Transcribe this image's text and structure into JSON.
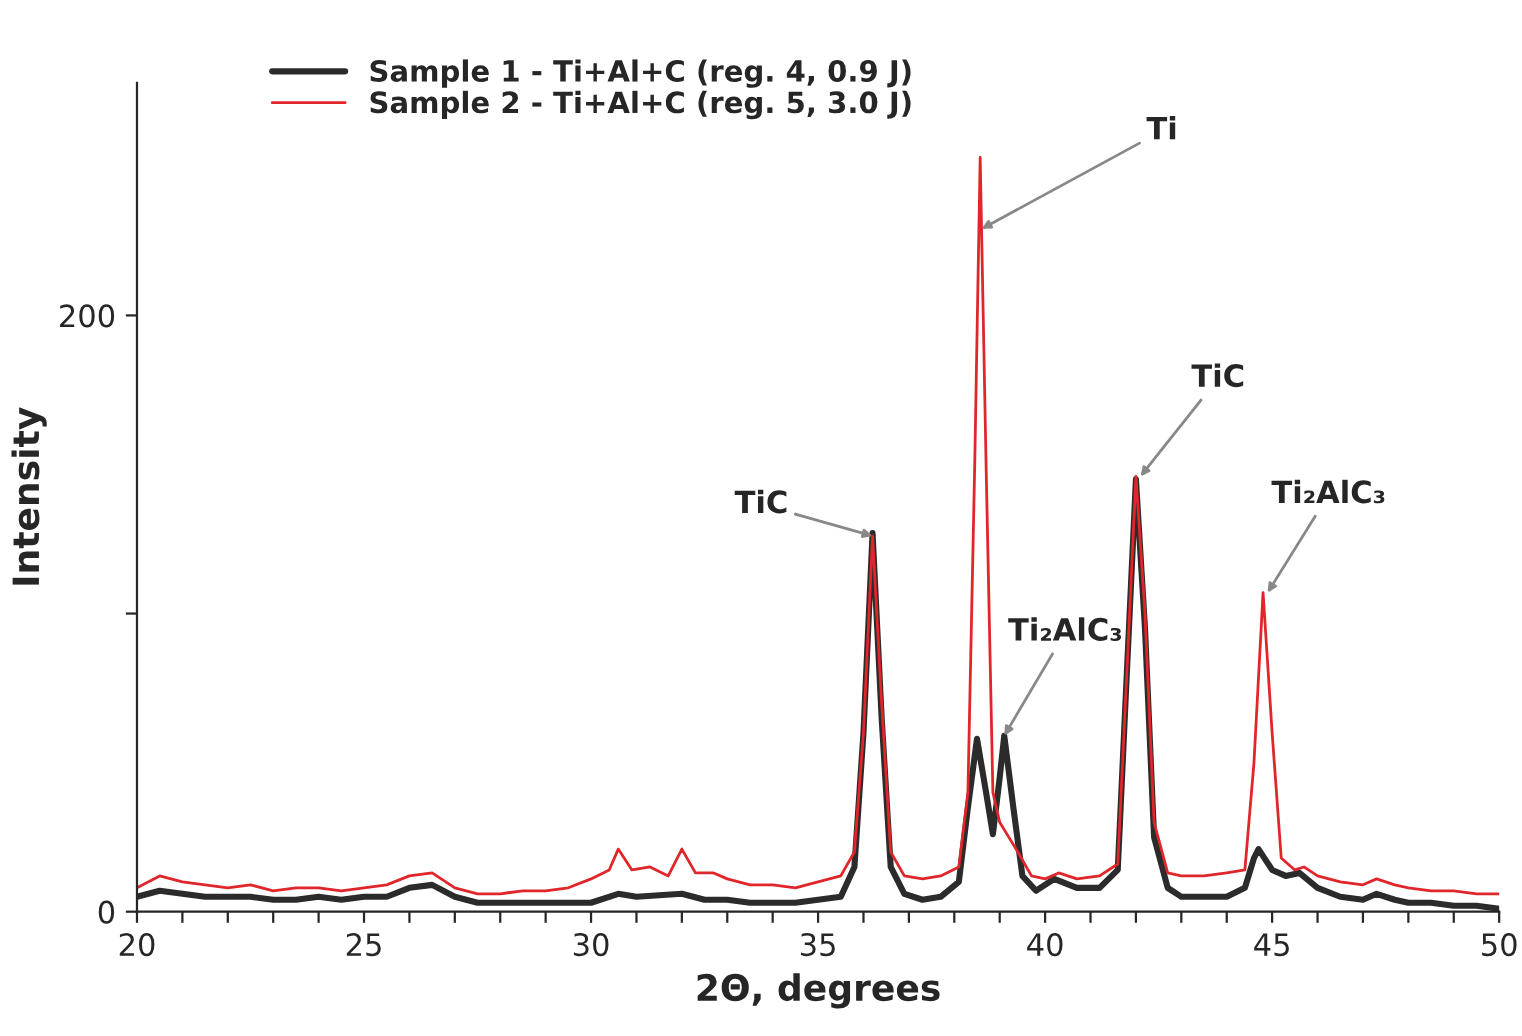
{
  "chart_data": {
    "type": "line",
    "xlabel": "2Θ, degrees",
    "ylabel": "Intensity",
    "xlim": [
      20,
      50
    ],
    "ylim": [
      0,
      278
    ],
    "xticks": [
      20,
      {
        "value": 21,
        "label": null
      },
      {
        "value": 22,
        "label": null
      },
      {
        "value": 23,
        "label": null
      },
      {
        "value": 24,
        "label": null
      },
      25,
      {
        "value": 26,
        "label": null
      },
      {
        "value": 27,
        "label": null
      },
      {
        "value": 28,
        "label": null
      },
      {
        "value": 29,
        "label": null
      },
      30,
      {
        "value": 31,
        "label": null
      },
      {
        "value": 32,
        "label": null
      },
      {
        "value": 33,
        "label": null
      },
      {
        "value": 34,
        "label": null
      },
      35,
      {
        "value": 36,
        "label": null
      },
      {
        "value": 37,
        "label": null
      },
      {
        "value": 38,
        "label": null
      },
      {
        "value": 39,
        "label": null
      },
      40,
      {
        "value": 41,
        "label": null
      },
      {
        "value": 42,
        "label": null
      },
      {
        "value": 43,
        "label": null
      },
      {
        "value": 44,
        "label": null
      },
      45,
      {
        "value": 46,
        "label": null
      },
      {
        "value": 47,
        "label": null
      },
      {
        "value": 48,
        "label": null
      },
      {
        "value": 49,
        "label": null
      },
      50
    ],
    "yticks": [
      0,
      {
        "value": 100,
        "label": null
      },
      200
    ],
    "grid": false,
    "legend": "top left",
    "marker": "none",
    "line_style": "solid",
    "series": [
      {
        "name": "Sample 1 - Ti+Al+C (reg. 4, 0.9 J)",
        "color": "#2b2b2b",
        "x": [
          20,
          20.5,
          21,
          21.5,
          22,
          22.5,
          23,
          23.5,
          24,
          24.5,
          25,
          25.5,
          26,
          26.5,
          27,
          27.5,
          28,
          28.5,
          29,
          29.5,
          30,
          30.6,
          31,
          32,
          32.5,
          33,
          33.5,
          34,
          34.5,
          35,
          35.5,
          35.8,
          36.0,
          36.2,
          36.4,
          36.6,
          36.9,
          37.3,
          37.7,
          38.1,
          38.3,
          38.5,
          38.7,
          38.85,
          39.0,
          39.1,
          39.3,
          39.5,
          39.8,
          40.2,
          40.7,
          41.2,
          41.6,
          41.8,
          42.0,
          42.2,
          42.4,
          42.7,
          43,
          43.5,
          44,
          44.4,
          44.6,
          44.7,
          45,
          45.3,
          45.6,
          46,
          46.5,
          47,
          47.3,
          47.7,
          48,
          48.5,
          49,
          49.5,
          50
        ],
        "values": [
          5,
          7,
          6,
          5,
          5,
          5,
          4,
          4,
          5,
          4,
          5,
          5,
          8,
          9,
          5,
          3,
          3,
          3,
          3,
          3,
          3,
          6,
          5,
          6,
          4,
          4,
          3,
          3,
          3,
          4,
          5,
          15,
          60,
          127,
          65,
          15,
          6,
          4,
          5,
          10,
          35,
          58,
          40,
          26,
          45,
          59,
          35,
          12,
          7,
          11,
          8,
          8,
          14,
          80,
          145,
          95,
          25,
          8,
          5,
          5,
          5,
          8,
          18,
          21,
          14,
          12,
          13,
          8,
          5,
          4,
          6,
          4,
          3,
          3,
          2,
          2,
          1
        ]
      },
      {
        "name": "Sample 2 - Ti+Al+C (reg. 5, 3.0 J)",
        "color": "#e0262a",
        "x": [
          20,
          20.5,
          21,
          21.5,
          22,
          22.5,
          23,
          23.5,
          24,
          24.5,
          25,
          25.5,
          26,
          26.5,
          27,
          27.5,
          28,
          28.5,
          29,
          29.5,
          30,
          30.4,
          30.6,
          30.9,
          31.3,
          31.7,
          32.0,
          32.3,
          32.7,
          33,
          33.5,
          34,
          34.5,
          35,
          35.5,
          35.8,
          36.0,
          36.2,
          36.4,
          36.6,
          36.9,
          37.3,
          37.7,
          38.1,
          38.3,
          38.45,
          38.57,
          38.7,
          38.85,
          39.0,
          39.2,
          39.4,
          39.7,
          40.0,
          40.3,
          40.7,
          41.2,
          41.6,
          41.8,
          42.0,
          42.2,
          42.4,
          42.7,
          43,
          43.5,
          44,
          44.4,
          44.6,
          44.8,
          45.0,
          45.2,
          45.5,
          45.7,
          46,
          46.5,
          47,
          47.3,
          47.7,
          48,
          48.5,
          49,
          49.5,
          50
        ],
        "values": [
          8,
          12,
          10,
          9,
          8,
          9,
          7,
          8,
          8,
          7,
          8,
          9,
          12,
          13,
          8,
          6,
          6,
          7,
          7,
          8,
          11,
          14,
          21,
          14,
          15,
          12,
          21,
          13,
          13,
          11,
          9,
          9,
          8,
          10,
          12,
          20,
          60,
          126,
          70,
          20,
          12,
          11,
          12,
          15,
          40,
          150,
          253,
          150,
          40,
          30,
          25,
          20,
          12,
          11,
          13,
          11,
          12,
          16,
          80,
          146,
          100,
          30,
          13,
          12,
          12,
          13,
          14,
          50,
          107,
          60,
          18,
          14,
          15,
          12,
          10,
          9,
          11,
          9,
          8,
          7,
          7,
          6,
          6
        ]
      }
    ],
    "annotations": [
      {
        "text": "TiC",
        "x": 36.2,
        "y": 126
      },
      {
        "text": "Ti",
        "x": 38.6,
        "y": 229
      },
      {
        "text": "Ti₂AlC₃",
        "x": 39.1,
        "y": 59
      },
      {
        "text": "TiC",
        "x": 42.1,
        "y": 146
      },
      {
        "text": "Ti₂AlC₃",
        "x": 44.9,
        "y": 107
      }
    ]
  }
}
